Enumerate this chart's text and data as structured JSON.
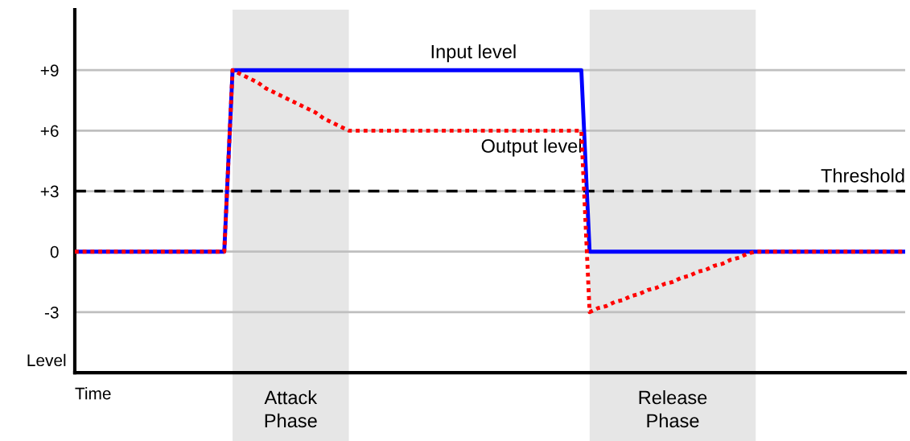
{
  "chart_data": {
    "type": "line",
    "xlabel": "Time",
    "ylabel": "Level",
    "categories": [
      null,
      null,
      null,
      null,
      null,
      null,
      null,
      null,
      null,
      null,
      null,
      null,
      null,
      null,
      null,
      null,
      null,
      null,
      null,
      null,
      null,
      null,
      null,
      null,
      null,
      null,
      null,
      null,
      null,
      null,
      null,
      null,
      null,
      null,
      null,
      null,
      null,
      null,
      null,
      null,
      null,
      null,
      null,
      null,
      null,
      null,
      null,
      null,
      null,
      null,
      null,
      null,
      null,
      null,
      null,
      null,
      null,
      null,
      null,
      null,
      null,
      null,
      null,
      null,
      null,
      null,
      null,
      null,
      null,
      null,
      null,
      null,
      null,
      null,
      null,
      null,
      null,
      null,
      null,
      null,
      null,
      null,
      null,
      null,
      null,
      null,
      null,
      null,
      null,
      null,
      null,
      null,
      null,
      null,
      null,
      null,
      null,
      null,
      null,
      null,
      null
    ],
    "ylim": [
      -6,
      12
    ],
    "yticks": [
      {
        "value": 9,
        "label": "+9"
      },
      {
        "value": 6,
        "label": "+6"
      },
      {
        "value": 3,
        "label": "+3"
      },
      {
        "value": 0,
        "label": "0"
      },
      {
        "value": -3,
        "label": "-3"
      }
    ],
    "tick_labels": "y",
    "grid": "y",
    "marker": "none",
    "legend": false,
    "series": [
      {
        "name": "Input level",
        "color": "#0000ff",
        "line_style": "solid",
        "values": [
          0,
          0,
          0,
          0,
          0,
          0,
          0,
          0,
          0,
          0,
          0,
          0,
          0,
          0,
          0,
          0,
          0,
          0,
          0,
          9,
          9,
          9,
          9,
          9,
          9,
          9,
          9,
          9,
          9,
          9,
          9,
          9,
          9,
          9,
          9,
          9,
          9,
          9,
          9,
          9,
          9,
          9,
          9,
          9,
          9,
          9,
          9,
          9,
          9,
          9,
          9,
          9,
          9,
          9,
          9,
          9,
          9,
          9,
          9,
          9,
          9,
          9,
          0,
          0,
          0,
          0,
          0,
          0,
          0,
          0,
          0,
          0,
          0,
          0,
          0,
          0,
          0,
          0,
          0,
          0,
          0,
          0,
          0,
          0,
          0,
          0,
          0,
          0,
          0,
          0,
          0,
          0,
          0,
          0,
          0,
          0,
          0,
          0,
          0,
          0,
          0
        ]
      },
      {
        "name": "Output level",
        "color": "#ff0000",
        "line_style": "dotted",
        "values": [
          0,
          0,
          0,
          0,
          0,
          0,
          0,
          0,
          0,
          0,
          0,
          0,
          0,
          0,
          0,
          0,
          0,
          0,
          0,
          9,
          8.8,
          8.6,
          8.4,
          8.1,
          7.9,
          7.7,
          7.5,
          7.3,
          7.1,
          6.9,
          6.6,
          6.4,
          6.2,
          6,
          6,
          6,
          6,
          6,
          6,
          6,
          6,
          6,
          6,
          6,
          6,
          6,
          6,
          6,
          6,
          6,
          6,
          6,
          6,
          6,
          6,
          6,
          6,
          6,
          6,
          6,
          6,
          6,
          -3,
          -2.8,
          -2.7,
          -2.5,
          -2.4,
          -2.2,
          -2.1,
          -1.9,
          -1.8,
          -1.6,
          -1.5,
          -1.3,
          -1.2,
          -1.0,
          -0.9,
          -0.7,
          -0.6,
          -0.4,
          -0.3,
          -0.1,
          0,
          0,
          0,
          0,
          0,
          0,
          0,
          0,
          0,
          0,
          0,
          0,
          0,
          0,
          0,
          0,
          0,
          0,
          0
        ]
      }
    ],
    "ref_lines": [
      {
        "axis": "y",
        "value": 3,
        "label": "Threshold",
        "color": "#000000",
        "line_style": "dashed"
      }
    ],
    "annotations": [
      "Attack\nPhase",
      "Release\nPhase"
    ]
  }
}
